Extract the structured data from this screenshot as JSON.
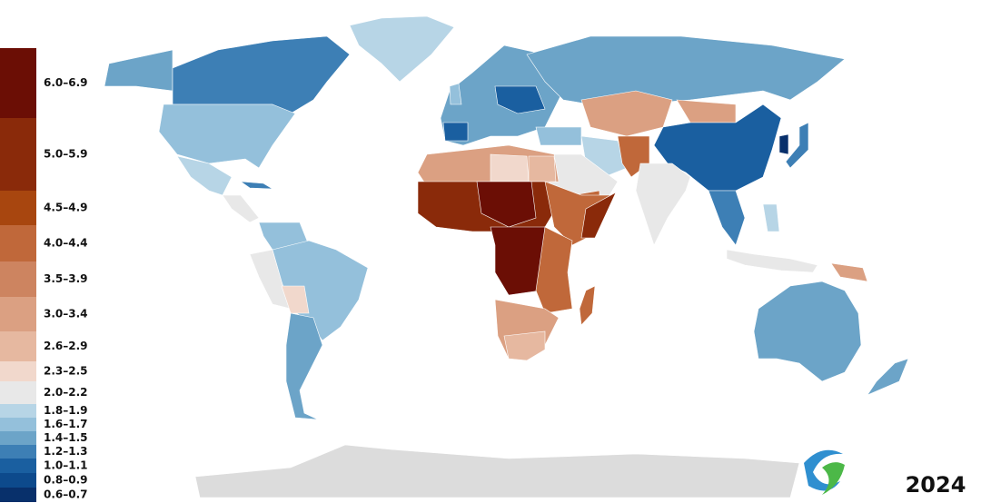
{
  "legend": {
    "items": [
      {
        "label": "6.0–6.9",
        "color": "#6b0e05"
      },
      {
        "label": "5.0–5.9",
        "color": "#8a2a0a"
      },
      {
        "label": "4.5–4.9",
        "color": "#a8460f"
      },
      {
        "label": "4.0–4.4",
        "color": "#c0683a"
      },
      {
        "label": "3.5–3.9",
        "color": "#cd8460"
      },
      {
        "label": "3.0–3.4",
        "color": "#dba082"
      },
      {
        "label": "2.6–2.9",
        "color": "#e6b8a0"
      },
      {
        "label": "2.3–2.5",
        "color": "#f1d8cc"
      },
      {
        "label": "2.0–2.2",
        "color": "#e8e8e8"
      },
      {
        "label": "1.8–1.9",
        "color": "#b7d5e6"
      },
      {
        "label": "1.6–1.7",
        "color": "#94c0db"
      },
      {
        "label": "1.4–1.5",
        "color": "#6ca4c8"
      },
      {
        "label": "1.2–1.3",
        "color": "#3d7fb5"
      },
      {
        "label": "1.0–1.1",
        "color": "#1a5fa0"
      },
      {
        "label": "0.8–0.9",
        "color": "#0d4a8c"
      },
      {
        "label": "0.6–0.7",
        "color": "#08306b"
      }
    ]
  },
  "watermark": {
    "year": "2024"
  }
}
